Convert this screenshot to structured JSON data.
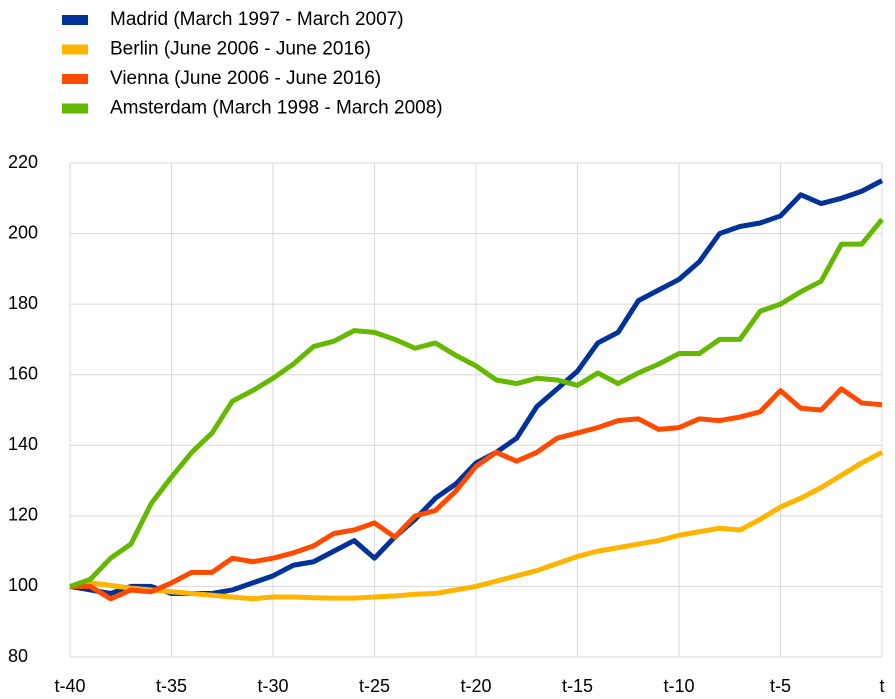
{
  "chart_data": {
    "type": "line",
    "categories": [
      "t-40",
      null,
      null,
      null,
      null,
      "t-35",
      null,
      null,
      null,
      null,
      "t-30",
      null,
      null,
      null,
      null,
      "t-25",
      null,
      null,
      null,
      null,
      "t-20",
      null,
      null,
      null,
      null,
      "t-15",
      null,
      null,
      null,
      null,
      "t-10",
      null,
      null,
      null,
      null,
      "t-5",
      null,
      null,
      null,
      null,
      "t"
    ],
    "series": [
      {
        "name": "Madrid (March 1997 - March 2007)",
        "color": "#003299",
        "values": [
          100,
          99,
          98,
          100,
          100,
          98,
          98,
          98,
          99,
          101,
          103,
          106,
          107,
          110,
          113,
          108,
          114,
          119,
          125,
          129,
          135,
          138,
          142,
          151,
          156,
          161,
          169,
          172,
          181,
          184,
          187,
          192,
          200,
          202,
          203,
          205,
          211,
          208.5,
          210,
          212,
          215
        ]
      },
      {
        "name": "Berlin (June 2006 - June 2016)",
        "color": "#ffb400",
        "values": [
          100,
          101,
          100.3,
          99.5,
          99,
          98.5,
          98,
          97.5,
          97,
          96.5,
          97,
          97,
          96.8,
          96.7,
          96.7,
          97,
          97.3,
          97.8,
          98,
          99,
          100,
          101.5,
          103,
          104.5,
          106.5,
          108.5,
          110,
          111,
          112,
          113,
          114.5,
          115.5,
          116.5,
          116,
          119,
          122.5,
          125,
          128,
          131.5,
          135,
          138
        ]
      },
      {
        "name": "Vienna (June 2006 - June 2016)",
        "color": "#ff4b00",
        "values": [
          100,
          100,
          96.5,
          99,
          98.5,
          101,
          104,
          104,
          108,
          107,
          108,
          109.5,
          111.5,
          115,
          116,
          118,
          114,
          120,
          121.5,
          127,
          134,
          138,
          135.5,
          138,
          142,
          143.5,
          145,
          147,
          147.5,
          144.5,
          145,
          147.5,
          147,
          148,
          149.5,
          155.5,
          150.5,
          150,
          156,
          152,
          151.5
        ]
      },
      {
        "name": "Amsterdam (March 1998 - March 2008)",
        "color": "#65b800",
        "values": [
          100,
          102,
          108,
          112,
          123.5,
          131,
          138,
          143.5,
          152.5,
          155.5,
          159,
          163,
          168,
          169.5,
          172.5,
          172,
          170,
          167.5,
          169,
          165.5,
          162.5,
          158.5,
          157.5,
          159,
          158.5,
          157,
          160.5,
          157.5,
          160.5,
          163,
          166,
          166,
          170,
          170,
          178,
          180,
          183.5,
          186.5,
          197,
          197,
          204
        ]
      }
    ],
    "ylim": [
      80,
      220
    ],
    "yticks": [
      80,
      100,
      120,
      140,
      160,
      180,
      200,
      220
    ],
    "grid": true
  }
}
